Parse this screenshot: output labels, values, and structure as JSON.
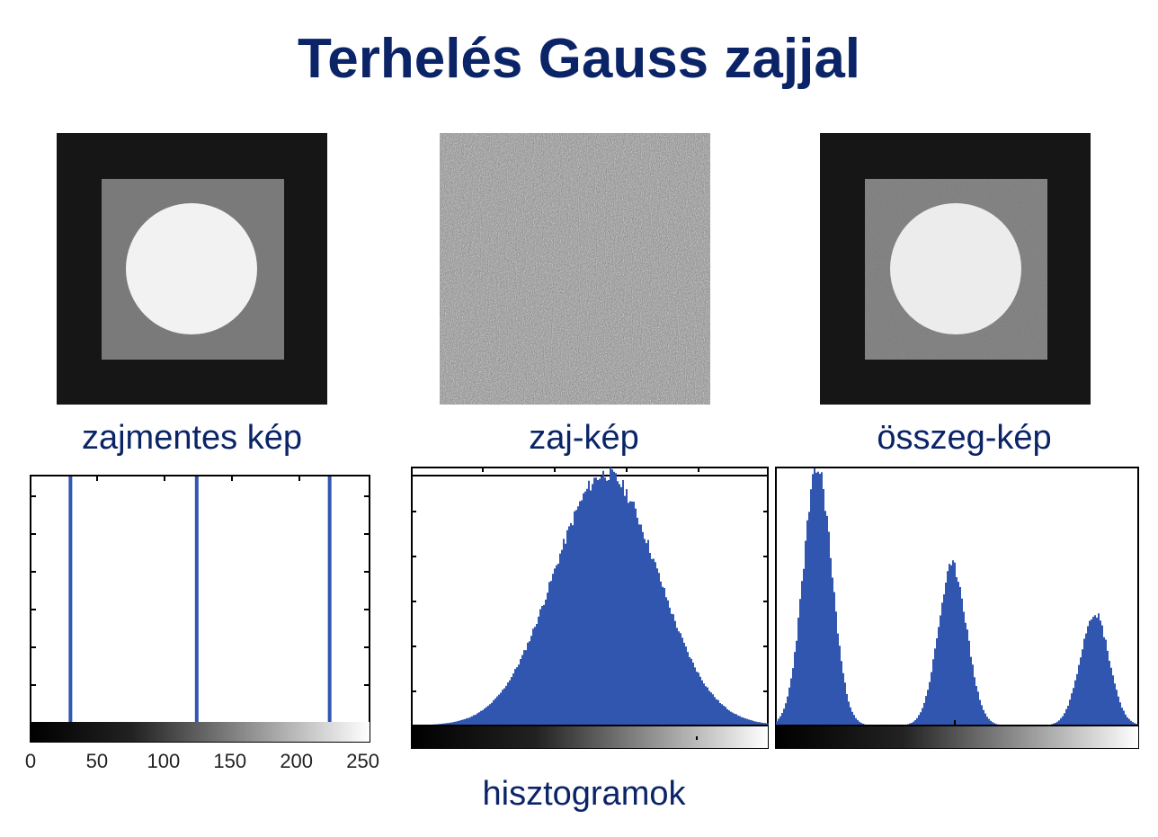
{
  "title": "Terhelés Gauss zajjal",
  "captions": {
    "clean": "zajmentes kép",
    "noise": "zaj-kép",
    "sum": "összeg-kép",
    "bottom": "hisztogramok"
  },
  "colors": {
    "title": "#0a2467",
    "histogram_fill": "#3056b0"
  },
  "chart_data": [
    {
      "type": "bar",
      "caption": "zajmentes kép",
      "x_ticks": [
        "0",
        "50",
        "100",
        "150",
        "200",
        "250"
      ],
      "xlim": [
        0,
        255
      ],
      "spikes_at_gray_level": [
        30,
        125,
        225
      ],
      "colorbar": "black-to-white gradient"
    },
    {
      "type": "area",
      "caption": "zaj-kép",
      "distribution": "gaussian",
      "peak_gray_level": 128,
      "xlim": [
        0,
        255
      ],
      "colorbar": "black-to-white gradient"
    },
    {
      "type": "area",
      "caption": "összeg-kép",
      "distribution": "three gaussian peaks",
      "peak_gray_levels": [
        30,
        125,
        225
      ],
      "relative_peak_heights": [
        1.0,
        0.62,
        0.44
      ],
      "xlim": [
        0,
        255
      ],
      "colorbar": "black-to-white gradient"
    }
  ]
}
